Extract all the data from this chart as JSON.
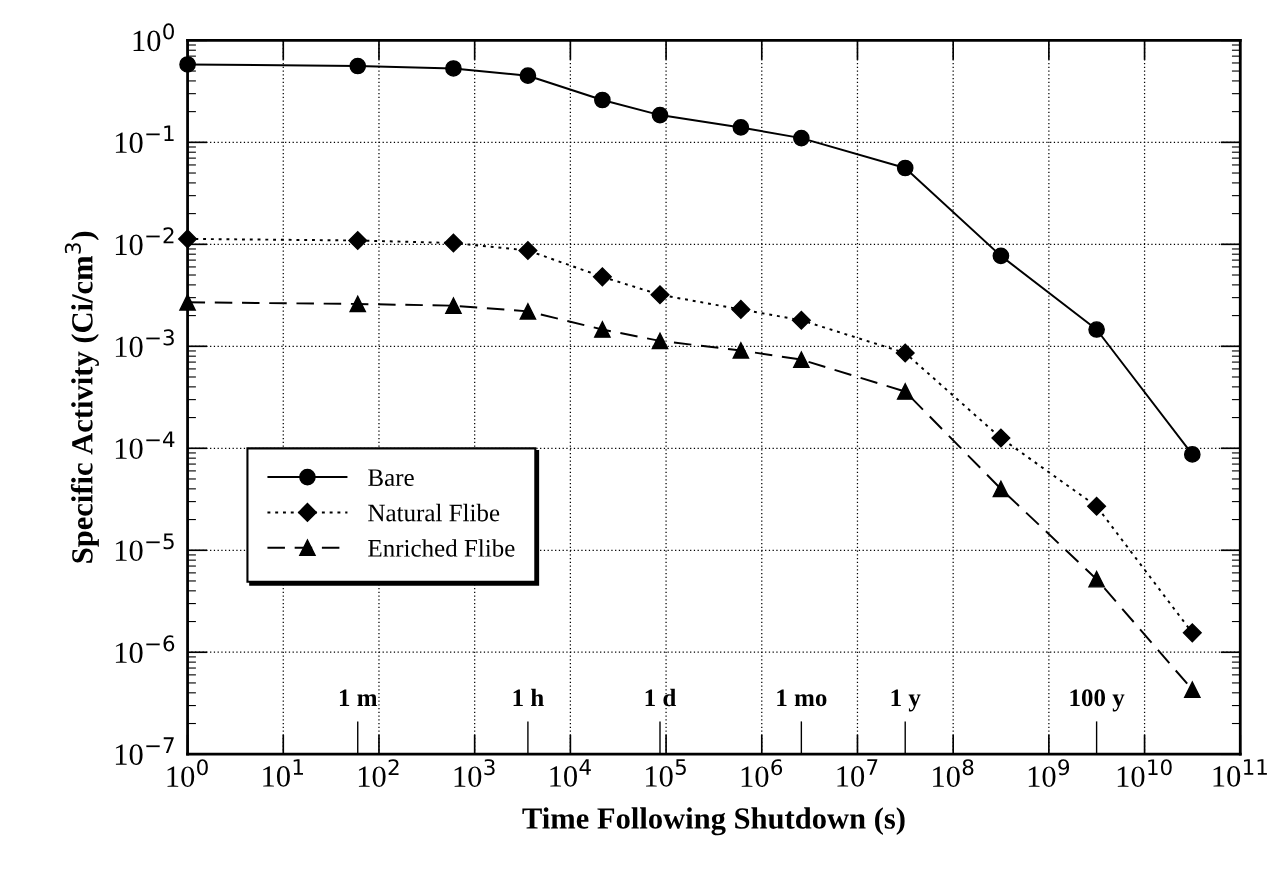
{
  "chart_data": {
    "type": "line",
    "xlabel": "Time Following Shutdown (s)",
    "ylabel": "Specific Activity (Ci/cm$^{3}$)",
    "x": [
      1,
      60,
      600,
      3600,
      21600,
      86400,
      604800,
      2592000,
      31536000,
      315360000,
      3153600000,
      31536000000
    ],
    "series": [
      {
        "name": "Bare",
        "color": "#000000",
        "marker": "circle",
        "line_style": "solid",
        "values": [
          0.58,
          0.56,
          0.53,
          0.45,
          0.26,
          0.185,
          0.14,
          0.11,
          0.056,
          0.0077,
          0.00146,
          8.7e-05
        ]
      },
      {
        "name": "Natural Flibe",
        "color": "#000000",
        "marker": "diamond",
        "line_style": "dotted",
        "values": [
          0.0113,
          0.0109,
          0.0103,
          0.0087,
          0.0048,
          0.0032,
          0.0023,
          0.0018,
          0.00086,
          0.000126,
          2.7e-05,
          1.55e-06
        ]
      },
      {
        "name": "Enriched Flibe",
        "color": "#000000",
        "marker": "triangle",
        "line_style": "dashed",
        "values": [
          0.0027,
          0.0026,
          0.0025,
          0.0022,
          0.00146,
          0.00113,
          0.00091,
          0.00074,
          0.00036,
          4e-05,
          5.2e-06,
          4.3e-07
        ]
      }
    ],
    "log": "xy",
    "xlim": [
      1,
      100000000000
    ],
    "xticks": [
      {
        "value": 1,
        "label": "10$^{0}$"
      },
      {
        "value": 10,
        "label": "10$^{1}$"
      },
      {
        "value": 100,
        "label": "10$^{2}$"
      },
      {
        "value": 1000,
        "label": "10$^{3}$"
      },
      {
        "value": 10000,
        "label": "10$^{4}$"
      },
      {
        "value": 100000,
        "label": "10$^{5}$"
      },
      {
        "value": 1000000,
        "label": "10$^{6}$"
      },
      {
        "value": 10000000,
        "label": "10$^{7}$"
      },
      {
        "value": 100000000,
        "label": "10$^{8}$"
      },
      {
        "value": 1000000000,
        "label": "10$^{9}$"
      },
      {
        "value": 10000000000,
        "label": "10$^{10}$"
      },
      {
        "value": 100000000000,
        "label": "10$^{11}$"
      }
    ],
    "ylim": [
      1e-07,
      1
    ],
    "yticks": [
      {
        "value": 1e-07,
        "label": "10$^{−7}$"
      },
      {
        "value": 1e-06,
        "label": "10$^{−6}$"
      },
      {
        "value": 1e-05,
        "label": "10$^{−5}$"
      },
      {
        "value": 0.0001,
        "label": "10$^{−4}$"
      },
      {
        "value": 0.001,
        "label": "10$^{−3}$"
      },
      {
        "value": 0.01,
        "label": "10$^{−2}$"
      },
      {
        "value": 0.1,
        "label": "10$^{−1}$"
      },
      {
        "value": 1,
        "label": "10$^{0}$"
      }
    ],
    "ref_lines": [
      {
        "axis": "x",
        "value": 60,
        "label": "1 m"
      },
      {
        "axis": "x",
        "value": 3600,
        "label": "1 h"
      },
      {
        "axis": "x",
        "value": 86400,
        "label": "1 d"
      },
      {
        "axis": "x",
        "value": 2592000,
        "label": "1 mo"
      },
      {
        "axis": "x",
        "value": 31536000,
        "label": "1 y"
      },
      {
        "axis": "x",
        "value": 3153600000,
        "label": "100 y"
      }
    ],
    "grid": true,
    "legend": "center left"
  }
}
